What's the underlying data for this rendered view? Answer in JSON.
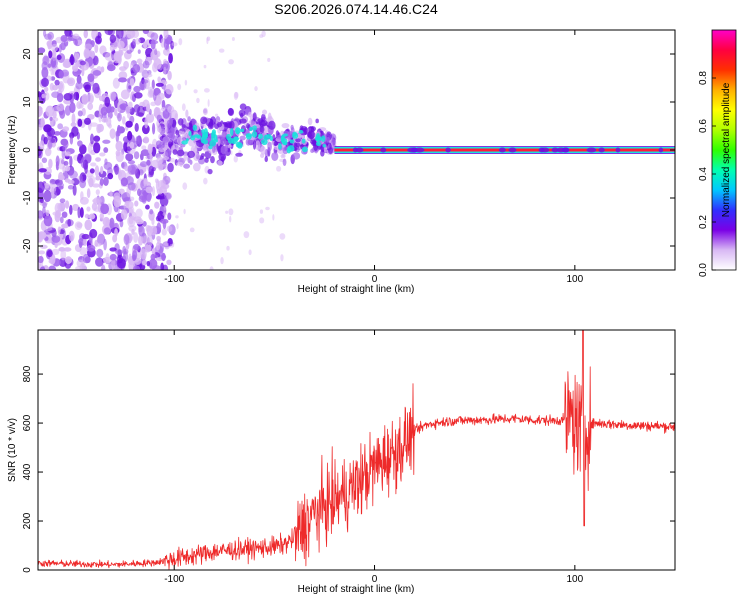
{
  "title": "S206.2026.074.14.46.C24",
  "colors": {
    "trace": "#ee2a2a",
    "spectral_line": "#ff1a3a",
    "scatter_light": "#d9b8f5",
    "scatter_mid": "#a468ee",
    "scatter_dark": "#6a10e0",
    "cyan": "#19e0dc"
  },
  "chart_data": [
    {
      "type": "heatmap",
      "name": "spectrogram",
      "xlabel": "Height of straight line (km)",
      "ylabel": "Frequency (Hz)",
      "xlim": [
        -168,
        150
      ],
      "ylim": [
        -25,
        25
      ],
      "xticks": [
        -100,
        0,
        100
      ],
      "xtick_labels": [
        "-100",
        "0",
        "100"
      ],
      "yticks": [
        -20,
        -10,
        0,
        10,
        20
      ],
      "ytick_labels": [
        "-20",
        "-10",
        "0",
        "10",
        "20"
      ],
      "colorbar": {
        "label": "Normalized spectral amplitude",
        "range": [
          0,
          1
        ],
        "ticks": [
          0,
          0.2,
          0.4,
          0.6,
          0.8
        ],
        "tick_labels": [
          "0.0",
          "0.2",
          "0.4",
          "0.6",
          "0.8"
        ],
        "palette": [
          "#ffffff",
          "#d8b8f4",
          "#7a00e6",
          "#3030ff",
          "#00c8ff",
          "#00ffb0",
          "#30ff00",
          "#b0ff00",
          "#ffff00",
          "#ffb000",
          "#ff3000",
          "#ff0040",
          "#ff00c8"
        ]
      },
      "features": {
        "noise_region_x": [
          -168,
          -105
        ],
        "transition_region_x": [
          -108,
          -20
        ],
        "carrier_line_x": [
          -20,
          150
        ],
        "carrier_frequency_hz": 0
      }
    },
    {
      "type": "line",
      "name": "snr",
      "xlabel": "Height of straight line (km)",
      "ylabel": "SNR (10 * v/v)",
      "xlim": [
        -168,
        150
      ],
      "ylim": [
        0,
        980
      ],
      "xticks": [
        -100,
        0,
        100
      ],
      "xtick_labels": [
        "-100",
        "0",
        "100"
      ],
      "yticks": [
        0,
        200,
        400,
        600,
        800
      ],
      "ytick_labels": [
        "0",
        "200",
        "400",
        "600",
        "800"
      ],
      "series": [
        {
          "name": "SNR",
          "color": "#ee2a2a",
          "x": [
            -168,
            -150,
            -130,
            -110,
            -100,
            -90,
            -80,
            -70,
            -60,
            -50,
            -45,
            -40,
            -35,
            -30,
            -25,
            -20,
            -15,
            -10,
            -5,
            0,
            5,
            10,
            15,
            20,
            25,
            30,
            40,
            50,
            60,
            70,
            80,
            90,
            95,
            98,
            100,
            102,
            104,
            106,
            110,
            120,
            130,
            140,
            150
          ],
          "y": [
            28,
            25,
            22,
            30,
            45,
            60,
            75,
            82,
            88,
            95,
            105,
            130,
            180,
            230,
            260,
            285,
            310,
            340,
            380,
            420,
            455,
            480,
            520,
            565,
            590,
            600,
            610,
            612,
            615,
            618,
            612,
            610,
            615,
            625,
            600,
            580,
            560,
            590,
            600,
            595,
            590,
            588,
            585
          ]
        }
      ]
    }
  ]
}
